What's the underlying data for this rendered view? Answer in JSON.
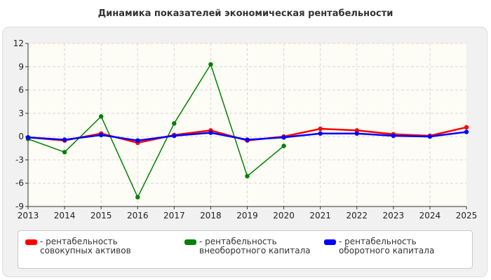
{
  "chart_data": {
    "type": "line",
    "title": "Динамика показателей экономическая рентабельности",
    "x": [
      "2013",
      "2014",
      "2015",
      "2016",
      "2017",
      "2018",
      "2019",
      "2020",
      "2021",
      "2022",
      "2023",
      "2024",
      "2025"
    ],
    "ylim": [
      -9,
      12
    ],
    "yticks": [
      12,
      9,
      6,
      3,
      0,
      -3,
      -6,
      -9
    ],
    "grid": true,
    "legend_position": "bottom",
    "series": [
      {
        "name": "- рентабельность совокупных активов",
        "color": "#ff0000",
        "values": [
          -0.1,
          -0.5,
          0.4,
          -0.8,
          0.2,
          0.8,
          -0.5,
          0.0,
          1.0,
          0.8,
          0.3,
          0.1,
          1.2
        ]
      },
      {
        "name": "- рентабельность внеоборотного капитала",
        "color": "#008000",
        "values": [
          -0.3,
          -2.0,
          2.6,
          -7.8,
          1.7,
          9.3,
          -5.1,
          -1.2,
          null,
          null,
          null,
          null,
          null
        ]
      },
      {
        "name": "- рентабельность оборотного капитала",
        "color": "#0000ff",
        "values": [
          -0.1,
          -0.4,
          0.2,
          -0.5,
          0.1,
          0.5,
          -0.4,
          -0.1,
          0.4,
          0.4,
          0.1,
          0.0,
          0.6
        ]
      }
    ]
  }
}
